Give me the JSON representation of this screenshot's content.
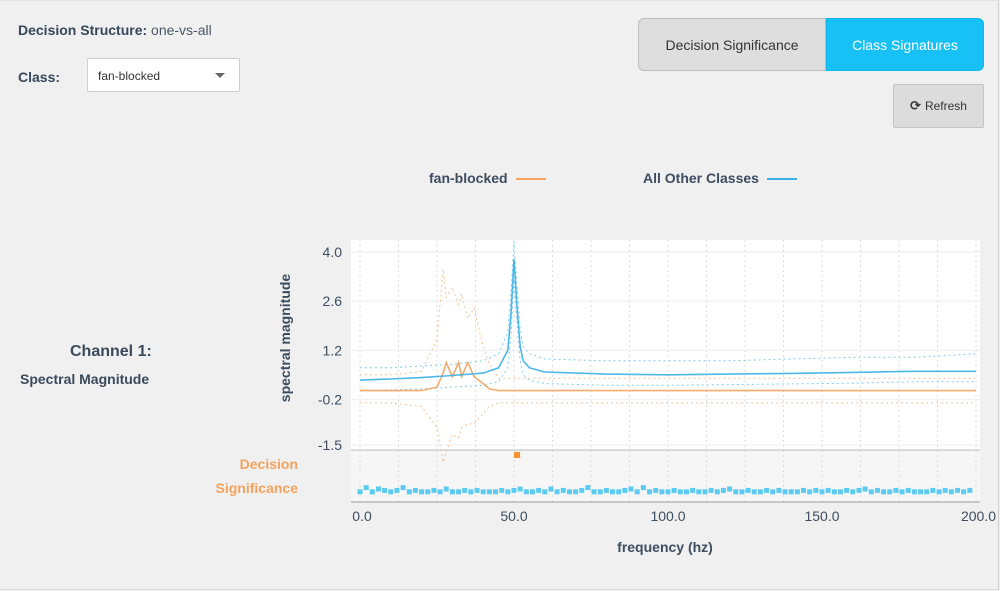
{
  "header": {
    "decision_structure_label": "Decision Structure:",
    "decision_structure_value": "one-vs-all",
    "class_label": "Class:",
    "class_selected": "fan-blocked"
  },
  "tabs": [
    {
      "label": "Decision Significance",
      "active": false
    },
    {
      "label": "Class Signatures",
      "active": true
    }
  ],
  "refresh_label": "Refresh",
  "legend": [
    {
      "label": "fan-blocked",
      "color": "#f5a25d"
    },
    {
      "label": "All Other Classes",
      "color": "#3ab0e6"
    }
  ],
  "channel_title": "Channel 1:",
  "channel_subtitle": "Spectral Magnitude",
  "decision_label_line1": "Decision",
  "decision_label_line2": "Significance",
  "colors": {
    "accent": "#17c0f5",
    "orange": "#f5a25d",
    "blue": "#3ab0e6",
    "sig_blue": "#5ccbf2"
  },
  "chart_data": {
    "type": "line",
    "title": "",
    "xlabel": "frequency (hz)",
    "ylabel": "spectral magnitude",
    "xlim": [
      0,
      200
    ],
    "ylim": [
      -1.5,
      4.0
    ],
    "y_ticks": [
      "4.0",
      "2.6",
      "1.2",
      "-0.2",
      "-1.5"
    ],
    "x_ticks": [
      "0.0",
      "50.0",
      "100.0",
      "150.0",
      "200.0"
    ],
    "grid": true,
    "legend_position": "top",
    "series": [
      {
        "name": "fan-blocked",
        "color": "#f5a25d",
        "x": [
          0,
          10,
          20,
          25,
          27,
          28,
          30,
          32,
          33,
          35,
          37,
          40,
          42,
          45,
          50,
          60,
          80,
          100,
          120,
          140,
          160,
          180,
          200
        ],
        "y": [
          0.05,
          0.05,
          0.05,
          0.15,
          0.55,
          0.85,
          0.45,
          0.85,
          0.45,
          0.85,
          0.45,
          0.25,
          0.1,
          0.05,
          0.05,
          0.05,
          0.05,
          0.05,
          0.05,
          0.05,
          0.05,
          0.05,
          0.05
        ],
        "upper": [
          0.5,
          0.5,
          0.6,
          1.5,
          3.5,
          2.7,
          3.0,
          2.5,
          2.8,
          2.1,
          2.4,
          1.3,
          0.8,
          0.4,
          0.4,
          0.4,
          0.4,
          0.4,
          0.4,
          0.4,
          0.4,
          0.4,
          0.4
        ],
        "lower": [
          -0.3,
          -0.3,
          -0.4,
          -1.0,
          -2.0,
          -1.7,
          -1.2,
          -1.3,
          -1.0,
          -0.9,
          -0.9,
          -0.6,
          -0.4,
          -0.3,
          -0.3,
          -0.3,
          -0.3,
          -0.3,
          -0.3,
          -0.3,
          -0.3,
          -0.3,
          -0.3
        ]
      },
      {
        "name": "All Other Classes",
        "color": "#3ab0e6",
        "x": [
          0,
          10,
          20,
          30,
          40,
          45,
          48,
          49,
          50,
          51,
          52,
          53,
          55,
          60,
          80,
          100,
          120,
          140,
          160,
          180,
          200
        ],
        "y": [
          0.35,
          0.38,
          0.42,
          0.48,
          0.55,
          0.7,
          1.2,
          2.2,
          3.8,
          2.4,
          1.3,
          0.9,
          0.7,
          0.58,
          0.52,
          0.5,
          0.52,
          0.54,
          0.57,
          0.6,
          0.6
        ],
        "upper": [
          0.7,
          0.7,
          0.75,
          0.8,
          0.9,
          1.1,
          1.7,
          2.8,
          4.3,
          3.0,
          1.8,
          1.3,
          1.1,
          0.95,
          0.9,
          0.9,
          0.9,
          0.95,
          1.0,
          1.0,
          1.1
        ],
        "lower": [
          0.05,
          0.07,
          0.1,
          0.15,
          0.2,
          0.3,
          0.7,
          1.6,
          3.2,
          1.9,
          0.9,
          0.5,
          0.35,
          0.25,
          0.2,
          0.2,
          0.22,
          0.24,
          0.26,
          0.3,
          0.3
        ]
      }
    ],
    "decision_significance": {
      "x_step": 2,
      "values": [
        0.3,
        0.6,
        0.3,
        0.5,
        0.4,
        0.3,
        0.4,
        0.6,
        0.3,
        0.4,
        0.3,
        0.3,
        0.4,
        0.3,
        0.5,
        0.3,
        0.3,
        0.4,
        0.3,
        0.4,
        0.3,
        0.3,
        0.3,
        0.4,
        0.3,
        0.4,
        0.5,
        0.3,
        0.3,
        0.4,
        0.3,
        0.5,
        0.3,
        0.4,
        0.3,
        0.3,
        0.4,
        0.6,
        0.3,
        0.3,
        0.4,
        0.3,
        0.3,
        0.4,
        0.5,
        0.3,
        0.6,
        0.3,
        0.4,
        0.3,
        0.3,
        0.4,
        0.3,
        0.3,
        0.4,
        0.3,
        0.3,
        0.4,
        0.3,
        0.4,
        0.5,
        0.3,
        0.3,
        0.4,
        0.3,
        0.3,
        0.4,
        0.3,
        0.4,
        0.3,
        0.3,
        0.3,
        0.4,
        0.3,
        0.4,
        0.3,
        0.4,
        0.3,
        0.3,
        0.4,
        0.3,
        0.4,
        0.5,
        0.3,
        0.4,
        0.3,
        0.3,
        0.4,
        0.3,
        0.4,
        0.3,
        0.3,
        0.3,
        0.4,
        0.3,
        0.4,
        0.3,
        0.4,
        0.3,
        0.4
      ],
      "peak_x": 51,
      "peak_value": 1.0
    }
  }
}
